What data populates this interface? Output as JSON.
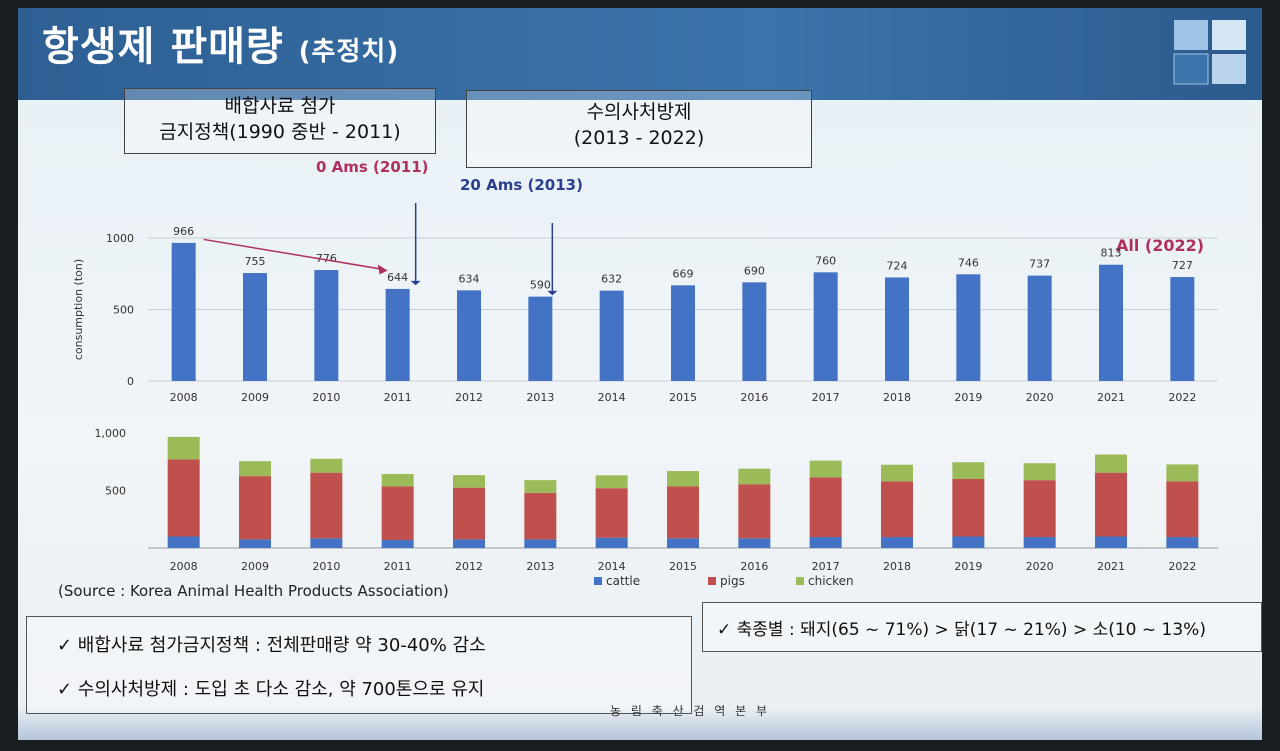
{
  "title": {
    "main": "항생제 판매량",
    "sub": "(추정치)"
  },
  "policy_box_1": {
    "line1": "배합사료 첨가",
    "line2": "금지정책(1990 중반 - 2011)"
  },
  "policy_box_2": {
    "line1": "수의사처방제",
    "line2": "(2013 - 2022)"
  },
  "annotations": {
    "ams_2011": "0 Ams (2011)",
    "ams_2013": "20 Ams (2013)",
    "all_2022": "All (2022)"
  },
  "source": "(Source : Korea Animal Health Products Association)",
  "notes": {
    "left1": "✓  배합사료 첨가금지정책 :  전체판매량 약 30-40% 감소",
    "left2": "✓  수의사처방제 : 도입 초 다소 감소, 약 700톤으로 유지",
    "right1": "✓  축종별 : 돼지(65 ~ 71%) > 닭(17 ~ 21%) > 소(10 ~ 13%)"
  },
  "footer": "농 림 축 산 검 역 본 부",
  "colors": {
    "bar_blue": "#4472c4",
    "cattle": "#4472c4",
    "pigs": "#c0504d",
    "chicken": "#9bbb59",
    "annot_magenta": "#b03060",
    "annot_blue": "#2b3f8f"
  },
  "chart_data": [
    {
      "type": "bar",
      "categories": [
        "2008",
        "2009",
        "2010",
        "2011",
        "2012",
        "2013",
        "2014",
        "2015",
        "2016",
        "2017",
        "2018",
        "2019",
        "2020",
        "2021",
        "2022"
      ],
      "values": [
        966,
        755,
        776,
        644,
        634,
        590,
        632,
        669,
        690,
        760,
        724,
        746,
        737,
        813,
        727
      ],
      "ylabel": "consumption (ton)",
      "ylim": [
        0,
        1000
      ],
      "yticks": [
        "0",
        "500",
        "1000"
      ],
      "grid": true
    },
    {
      "type": "bar",
      "stacked": true,
      "categories": [
        "2008",
        "2009",
        "2010",
        "2011",
        "2012",
        "2013",
        "2014",
        "2015",
        "2016",
        "2017",
        "2018",
        "2019",
        "2020",
        "2021",
        "2022"
      ],
      "series": [
        {
          "name": "cattle",
          "values": [
            100,
            75,
            85,
            70,
            75,
            75,
            90,
            85,
            85,
            95,
            95,
            100,
            95,
            100,
            95
          ]
        },
        {
          "name": "pigs",
          "values": [
            670,
            550,
            570,
            465,
            450,
            405,
            430,
            450,
            470,
            520,
            485,
            500,
            495,
            555,
            485
          ]
        },
        {
          "name": "chicken",
          "values": [
            196,
            130,
            121,
            109,
            109,
            110,
            112,
            134,
            135,
            145,
            144,
            146,
            147,
            158,
            147
          ]
        }
      ],
      "ylim": [
        0,
        1000
      ],
      "yticks": [
        "500",
        "1,000"
      ],
      "legend_position": "bottom"
    }
  ]
}
